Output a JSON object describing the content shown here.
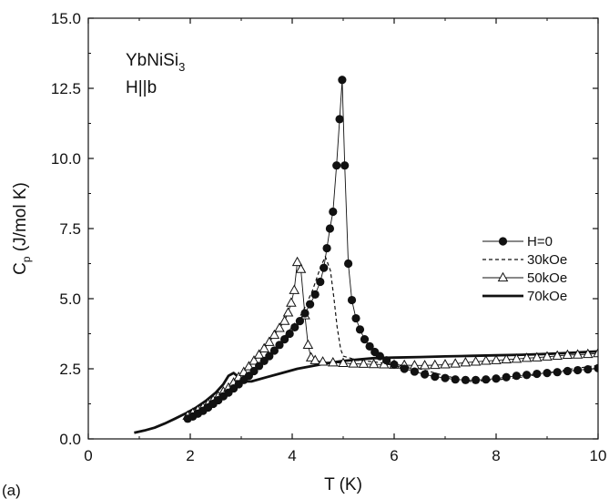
{
  "panel_label": "(a)",
  "annotation": {
    "compound_main": "YbNiSi",
    "compound_sub": "3",
    "field_dir": "H||b"
  },
  "colors": {
    "ink": "#111111",
    "background": "#ffffff"
  },
  "chart_data": {
    "type": "line",
    "title": "",
    "xlabel": "T (K)",
    "ylabel": {
      "main": "C",
      "sub": "p",
      "rest": " (J/mol K)"
    },
    "xlim": [
      0,
      10
    ],
    "ylim": [
      0,
      15
    ],
    "x_ticks": [
      "0",
      "2",
      "4",
      "6",
      "8",
      "10"
    ],
    "y_ticks": [
      "0.0",
      "2.5",
      "5.0",
      "7.5",
      "10.0",
      "12.5",
      "15.0"
    ],
    "grid": false,
    "legend_position": "right",
    "series": [
      {
        "name": "H=0",
        "style": "filled-circles-thin-line",
        "points": [
          [
            1.95,
            0.72
          ],
          [
            2.05,
            0.8
          ],
          [
            2.15,
            0.9
          ],
          [
            2.25,
            1.0
          ],
          [
            2.35,
            1.12
          ],
          [
            2.45,
            1.25
          ],
          [
            2.55,
            1.38
          ],
          [
            2.65,
            1.52
          ],
          [
            2.75,
            1.65
          ],
          [
            2.85,
            1.8
          ],
          [
            2.95,
            1.95
          ],
          [
            3.05,
            2.1
          ],
          [
            3.15,
            2.25
          ],
          [
            3.25,
            2.42
          ],
          [
            3.35,
            2.6
          ],
          [
            3.45,
            2.78
          ],
          [
            3.55,
            2.95
          ],
          [
            3.65,
            3.15
          ],
          [
            3.75,
            3.35
          ],
          [
            3.85,
            3.55
          ],
          [
            3.95,
            3.75
          ],
          [
            4.05,
            3.98
          ],
          [
            4.15,
            4.2
          ],
          [
            4.25,
            4.48
          ],
          [
            4.35,
            4.8
          ],
          [
            4.45,
            5.15
          ],
          [
            4.55,
            5.6
          ],
          [
            4.62,
            6.1
          ],
          [
            4.68,
            6.8
          ],
          [
            4.74,
            7.5
          ],
          [
            4.8,
            8.1
          ],
          [
            4.87,
            9.75
          ],
          [
            4.93,
            11.4
          ],
          [
            4.98,
            12.8
          ],
          [
            5.03,
            9.75
          ],
          [
            5.1,
            6.25
          ],
          [
            5.17,
            4.95
          ],
          [
            5.25,
            4.3
          ],
          [
            5.33,
            3.9
          ],
          [
            5.42,
            3.55
          ],
          [
            5.52,
            3.3
          ],
          [
            5.62,
            3.1
          ],
          [
            5.72,
            2.95
          ],
          [
            5.85,
            2.8
          ],
          [
            6.0,
            2.65
          ],
          [
            6.2,
            2.5
          ],
          [
            6.4,
            2.4
          ],
          [
            6.6,
            2.3
          ],
          [
            6.8,
            2.22
          ],
          [
            7.0,
            2.17
          ],
          [
            7.2,
            2.12
          ],
          [
            7.4,
            2.1
          ],
          [
            7.6,
            2.1
          ],
          [
            7.8,
            2.12
          ],
          [
            8.0,
            2.15
          ],
          [
            8.2,
            2.2
          ],
          [
            8.4,
            2.25
          ],
          [
            8.6,
            2.28
          ],
          [
            8.8,
            2.32
          ],
          [
            9.0,
            2.35
          ],
          [
            9.2,
            2.38
          ],
          [
            9.4,
            2.42
          ],
          [
            9.6,
            2.45
          ],
          [
            9.8,
            2.48
          ],
          [
            10.0,
            2.52
          ]
        ]
      },
      {
        "name": "30kOe",
        "style": "dashed-line",
        "points": [
          [
            1.95,
            0.8
          ],
          [
            2.2,
            1.05
          ],
          [
            2.5,
            1.35
          ],
          [
            2.8,
            1.75
          ],
          [
            3.1,
            2.2
          ],
          [
            3.4,
            2.7
          ],
          [
            3.7,
            3.3
          ],
          [
            4.0,
            4.0
          ],
          [
            4.2,
            4.5
          ],
          [
            4.4,
            5.3
          ],
          [
            4.55,
            6.1
          ],
          [
            4.65,
            6.5
          ],
          [
            4.75,
            6.0
          ],
          [
            4.82,
            5.0
          ],
          [
            4.88,
            4.0
          ],
          [
            4.95,
            3.2
          ],
          [
            5.0,
            2.95
          ],
          [
            5.3,
            2.8
          ],
          [
            5.6,
            2.75
          ],
          [
            6.0,
            2.65
          ],
          [
            6.5,
            2.5
          ],
          [
            7.0,
            2.25
          ],
          [
            7.5,
            2.05
          ],
          [
            8.0,
            2.1
          ],
          [
            8.5,
            2.2
          ],
          [
            9.0,
            2.35
          ],
          [
            9.5,
            2.5
          ],
          [
            10.0,
            2.62
          ]
        ]
      },
      {
        "name": "50kOe",
        "style": "open-triangles-thin-line",
        "points": [
          [
            1.95,
            0.82
          ],
          [
            2.05,
            0.92
          ],
          [
            2.15,
            1.02
          ],
          [
            2.25,
            1.12
          ],
          [
            2.35,
            1.25
          ],
          [
            2.45,
            1.38
          ],
          [
            2.55,
            1.52
          ],
          [
            2.65,
            1.68
          ],
          [
            2.75,
            1.82
          ],
          [
            2.85,
            2.0
          ],
          [
            2.95,
            2.2
          ],
          [
            3.05,
            2.38
          ],
          [
            3.15,
            2.58
          ],
          [
            3.25,
            2.78
          ],
          [
            3.35,
            3.0
          ],
          [
            3.45,
            3.22
          ],
          [
            3.55,
            3.45
          ],
          [
            3.65,
            3.7
          ],
          [
            3.75,
            3.95
          ],
          [
            3.85,
            4.2
          ],
          [
            3.92,
            4.5
          ],
          [
            3.98,
            4.85
          ],
          [
            4.04,
            5.3
          ],
          [
            4.1,
            6.3
          ],
          [
            4.17,
            6.05
          ],
          [
            4.25,
            4.4
          ],
          [
            4.31,
            3.35
          ],
          [
            4.37,
            2.9
          ],
          [
            4.45,
            2.8
          ],
          [
            4.6,
            2.75
          ],
          [
            4.8,
            2.72
          ],
          [
            5.0,
            2.7
          ],
          [
            5.2,
            2.68
          ],
          [
            5.4,
            2.67
          ],
          [
            5.6,
            2.66
          ],
          [
            5.8,
            2.65
          ],
          [
            6.0,
            2.64
          ],
          [
            6.2,
            2.63
          ],
          [
            6.4,
            2.62
          ],
          [
            6.6,
            2.62
          ],
          [
            6.8,
            2.63
          ],
          [
            7.0,
            2.65
          ],
          [
            7.2,
            2.68
          ],
          [
            7.4,
            2.72
          ],
          [
            7.6,
            2.75
          ],
          [
            7.8,
            2.78
          ],
          [
            8.0,
            2.8
          ],
          [
            8.2,
            2.83
          ],
          [
            8.4,
            2.85
          ],
          [
            8.6,
            2.88
          ],
          [
            8.8,
            2.9
          ],
          [
            9.0,
            2.93
          ],
          [
            9.2,
            2.96
          ],
          [
            9.4,
            2.99
          ],
          [
            9.6,
            3.0
          ],
          [
            9.8,
            3.02
          ],
          [
            10.0,
            3.05
          ]
        ]
      },
      {
        "name": "70kOe",
        "style": "thick-line",
        "points": [
          [
            0.9,
            0.22
          ],
          [
            1.1,
            0.3
          ],
          [
            1.3,
            0.4
          ],
          [
            1.5,
            0.55
          ],
          [
            1.7,
            0.72
          ],
          [
            1.9,
            0.9
          ],
          [
            2.1,
            1.1
          ],
          [
            2.3,
            1.35
          ],
          [
            2.5,
            1.65
          ],
          [
            2.65,
            1.95
          ],
          [
            2.75,
            2.25
          ],
          [
            2.85,
            2.35
          ],
          [
            2.95,
            2.2
          ],
          [
            3.05,
            2.05
          ],
          [
            3.2,
            2.05
          ],
          [
            3.5,
            2.2
          ],
          [
            3.8,
            2.35
          ],
          [
            4.1,
            2.5
          ],
          [
            4.4,
            2.6
          ],
          [
            4.7,
            2.7
          ],
          [
            5.0,
            2.78
          ],
          [
            5.3,
            2.83
          ],
          [
            5.6,
            2.88
          ],
          [
            6.0,
            2.9
          ],
          [
            6.5,
            2.92
          ],
          [
            7.0,
            2.94
          ],
          [
            7.5,
            2.96
          ],
          [
            8.0,
            2.98
          ],
          [
            8.5,
            3.0
          ],
          [
            9.0,
            3.03
          ],
          [
            9.5,
            3.07
          ],
          [
            10.0,
            3.12
          ]
        ]
      }
    ]
  }
}
